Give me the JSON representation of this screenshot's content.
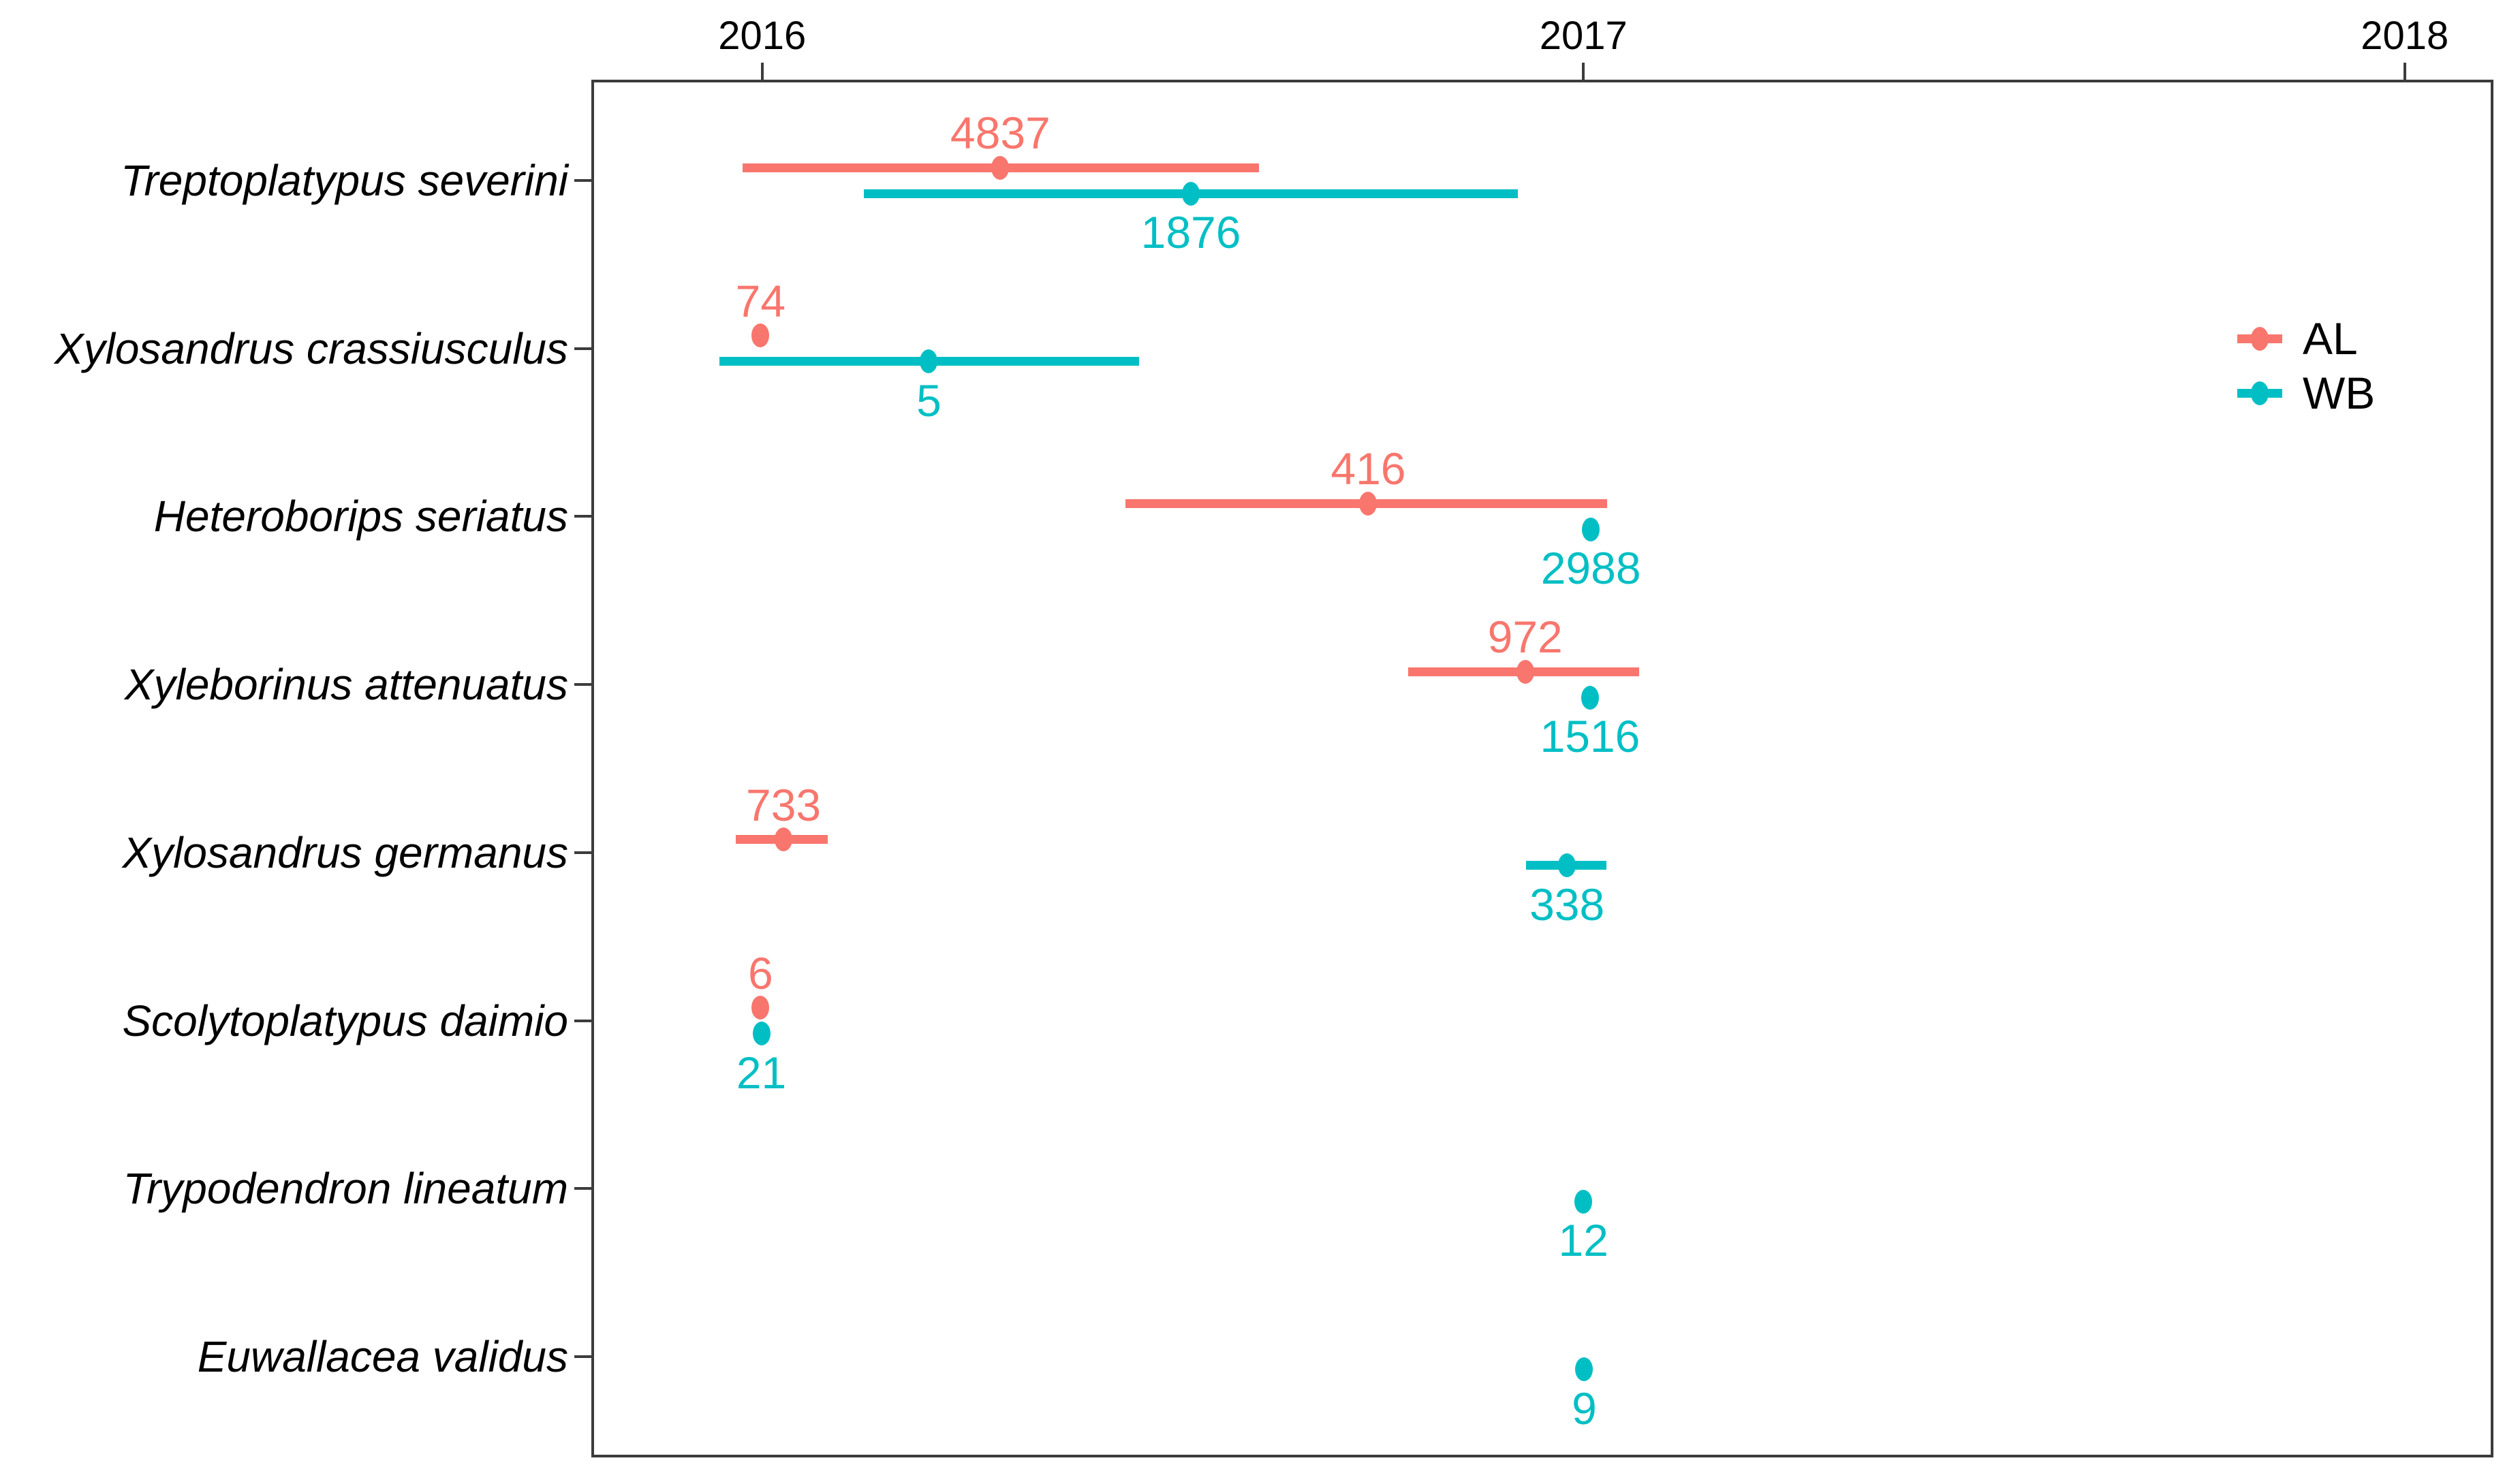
{
  "chart_data": {
    "type": "pointrange",
    "orientation": "horizontal",
    "title": "",
    "xlabel": "",
    "ylabel": "",
    "grid": false,
    "x_axis": {
      "position": "top",
      "ticks": [
        2016,
        2017,
        2018
      ],
      "tick_labels": [
        "2016",
        "2017",
        "2018"
      ],
      "range": [
        2015.792,
        2018.108
      ]
    },
    "y_categories": [
      "Treptoplatypus severini",
      "Xylosandrus crassiusculus",
      "Heteroborips seriatus",
      "Xyleborinus attenuatus",
      "Xylosandrus germanus",
      "Scolytoplatypus daimio",
      "Trypodendron lineatum",
      "Euwallacea validus"
    ],
    "legend": {
      "position": "right",
      "entries": [
        {
          "label": "AL",
          "color": "#F8766D"
        },
        {
          "label": "WB",
          "color": "#00BFC4"
        }
      ]
    },
    "series": [
      {
        "name": "AL",
        "color": "#F8766D",
        "label_side": "above",
        "points": [
          {
            "species": "Treptoplatypus severini",
            "start": 2015.976,
            "mean": 2016.29,
            "end": 2016.605,
            "count": 4837
          },
          {
            "species": "Xylosandrus crassiusculus",
            "start": null,
            "mean": 2015.998,
            "end": null,
            "count": 74
          },
          {
            "species": "Heteroborips seriatus",
            "start": 2016.442,
            "mean": 2016.738,
            "end": 2017.029,
            "count": 416
          },
          {
            "species": "Xyleborinus attenuatus",
            "start": 2016.787,
            "mean": 2016.929,
            "end": 2017.068,
            "count": 972
          },
          {
            "species": "Xylosandrus germanus",
            "start": 2015.968,
            "mean": 2016.026,
            "end": 2016.08,
            "count": 733
          },
          {
            "species": "Scolytoplatypus daimio",
            "start": null,
            "mean": 2015.998,
            "end": null,
            "count": 6
          }
        ]
      },
      {
        "name": "WB",
        "color": "#00BFC4",
        "label_side": "below",
        "points": [
          {
            "species": "Treptoplatypus severini",
            "start": 2016.124,
            "mean": 2016.522,
            "end": 2016.92,
            "count": 1876
          },
          {
            "species": "Xylosandrus crassiusculus",
            "start": 2015.948,
            "mean": 2016.203,
            "end": 2016.459,
            "count": 5
          },
          {
            "species": "Heteroborips seriatus",
            "start": null,
            "mean": 2017.009,
            "end": null,
            "count": 2988
          },
          {
            "species": "Xyleborinus attenuatus",
            "start": null,
            "mean": 2017.008,
            "end": null,
            "count": 1516
          },
          {
            "species": "Xylosandrus germanus",
            "start": 2016.93,
            "mean": 2016.98,
            "end": 2017.028,
            "count": 338
          },
          {
            "species": "Scolytoplatypus daimio",
            "start": null,
            "mean": 2015.999,
            "end": null,
            "count": 21
          },
          {
            "species": "Trypodendron lineatum",
            "start": null,
            "mean": 2017.0,
            "end": null,
            "count": 12
          },
          {
            "species": "Euwallacea validus",
            "start": null,
            "mean": 2017.001,
            "end": null,
            "count": 9
          }
        ]
      }
    ],
    "colors": {
      "axis_line": "#3c3c3c",
      "axis_text": "#000000",
      "background": "#ffffff"
    }
  }
}
